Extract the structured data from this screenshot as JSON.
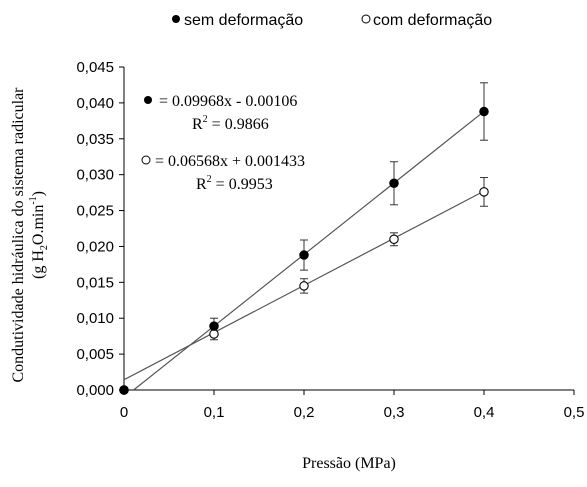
{
  "chart_data": {
    "type": "scatter",
    "xlabel": "Pressão (MPa)",
    "ylabel_line1": "Condutividade  hidráulica do sistema radicular",
    "ylabel_line2_prefix": "(g H",
    "ylabel_line2_sub": "2",
    "ylabel_line2_mid": "O.min",
    "ylabel_line2_sup": "-1",
    "ylabel_line2_suffix": ")",
    "xlim": [
      0,
      0.5
    ],
    "ylim": [
      0,
      0.045
    ],
    "xticks": [
      "0",
      "0,1",
      "0,2",
      "0,3",
      "0,4",
      "0,5"
    ],
    "yticks": [
      "0,000",
      "0,005",
      "0,010",
      "0,015",
      "0,020",
      "0,025",
      "0,030",
      "0,035",
      "0,040",
      "0,045"
    ],
    "legend_position": "top",
    "series": [
      {
        "name": "sem deformação",
        "marker": "filled-circle",
        "color": "#000000",
        "x": [
          0,
          0.1,
          0.2,
          0.3,
          0.4
        ],
        "y": [
          0.0,
          0.0089,
          0.0188,
          0.0288,
          0.0388
        ],
        "err": [
          0.0,
          0.0011,
          0.0021,
          0.003,
          0.004
        ],
        "fit": {
          "slope": 0.09968,
          "intercept": -0.00106
        },
        "equation": "= 0.09968x - 0.00106",
        "r2_prefix": "R",
        "r2_sup": "2",
        "r2_value": " = 0.9866"
      },
      {
        "name": "com deformação",
        "marker": "open-circle",
        "color": "#000000",
        "x": [
          0,
          0.1,
          0.2,
          0.3,
          0.4
        ],
        "y": [
          0.0,
          0.0078,
          0.0145,
          0.021,
          0.0276
        ],
        "err": [
          0.0,
          0.0008,
          0.001,
          0.0009,
          0.002
        ],
        "fit": {
          "slope": 0.06568,
          "intercept": 0.001433
        },
        "equation": "= 0.06568x + 0.001433",
        "r2_prefix": "R",
        "r2_sup": "2",
        "r2_value": " = 0.9953"
      }
    ]
  },
  "colors": {
    "axis": "#000000",
    "fit_line": "#555555",
    "background": "#ffffff"
  }
}
